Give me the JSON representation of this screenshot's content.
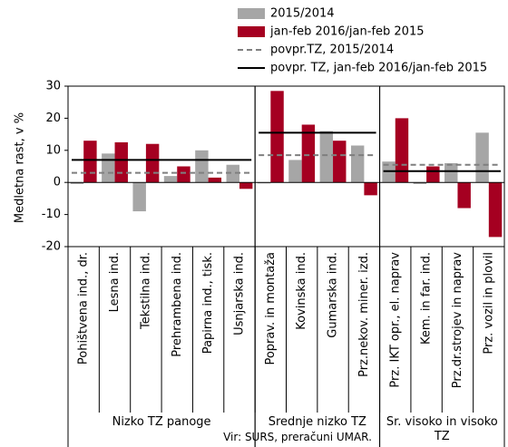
{
  "chart_data": {
    "type": "bar",
    "y_label": "Medletna rast, v %",
    "source": "Vir: SURS, preračuni UMAR.",
    "ylim": [
      -20,
      30
    ],
    "yticks": [
      -20,
      -10,
      0,
      10,
      20,
      30
    ],
    "groups": [
      {
        "label": "Nizko TZ panoge",
        "categories": [
          "Pohištvena ind., dr.",
          "Lesna ind.",
          "Tekstilna ind.",
          "Prehrambena ind.",
          "Papirna ind., tisk.",
          "Usnjarska ind."
        ]
      },
      {
        "label": "Srednje nizko TZ",
        "categories": [
          "Poprav. in montaža",
          "Kovinska ind.",
          "Gumarska ind.",
          "Prz.nekov. miner. izd."
        ]
      },
      {
        "label": "Sr. visoko in visoko TZ",
        "categories": [
          "Prz. IKT opr., el. naprav",
          "Kem. in far. ind.",
          "Prz.dr.strojev in naprav",
          "Prz. vozil in plovil"
        ]
      }
    ],
    "series": [
      {
        "name": "2015/2014",
        "color": "#a6a6a6",
        "values": [
          -0.5,
          9,
          -9,
          2,
          10,
          5.5,
          -0.3,
          7,
          16,
          11.5,
          6.5,
          -0.5,
          6,
          15.5
        ]
      },
      {
        "name": "jan-feb 2016/jan-feb 2015",
        "color": "#a50021",
        "values": [
          13,
          12.5,
          12,
          5,
          1.5,
          -2,
          28.5,
          18,
          13,
          -4,
          20,
          5,
          -8,
          -17
        ]
      }
    ],
    "averages": [
      {
        "name": "povpr.TZ, 2015/2014",
        "color": "#7f7f7f",
        "dashed": true,
        "values": [
          3,
          8.5,
          5.5
        ]
      },
      {
        "name": "povpr. TZ,  jan-feb 2016/jan-feb 2015",
        "color": "#000000",
        "dashed": false,
        "values": [
          7,
          15.5,
          3.5
        ]
      }
    ]
  }
}
